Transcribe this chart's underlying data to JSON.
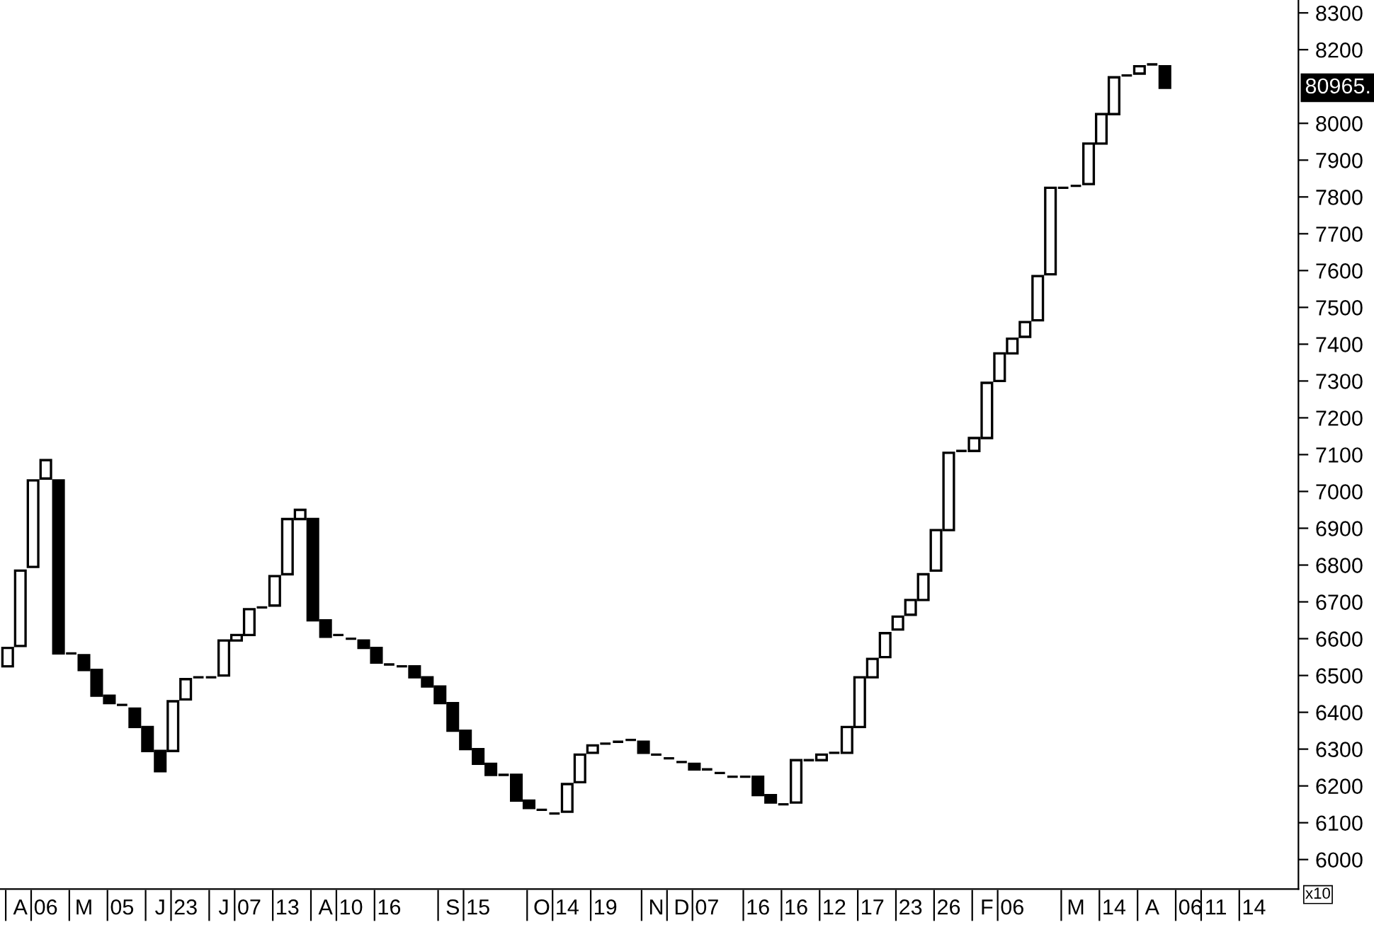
{
  "chart_data": {
    "type": "candlestick",
    "categories": [
      null,
      "A",
      null,
      "06",
      null,
      null,
      "M",
      null,
      null,
      "05",
      null,
      null,
      "J",
      null,
      "23",
      null,
      null,
      "J",
      null,
      "07",
      null,
      null,
      "13",
      null,
      null,
      "A",
      null,
      "10",
      null,
      null,
      "16",
      null,
      null,
      null,
      null,
      "S",
      null,
      "15",
      null,
      null,
      null,
      null,
      "O",
      null,
      "14",
      null,
      null,
      "19",
      null,
      null,
      null,
      "N",
      null,
      "D",
      null,
      "07",
      null,
      null,
      null,
      "16",
      null,
      null,
      "16",
      null,
      null,
      "12",
      null,
      null,
      "17",
      null,
      null,
      "23",
      null,
      null,
      "26",
      null,
      null,
      "F",
      null,
      "06",
      null,
      null,
      null,
      null,
      "M",
      null,
      null,
      "14",
      null,
      null,
      "A",
      null,
      null,
      "06",
      null,
      "11",
      null,
      null,
      "14"
    ],
    "ohlc": [
      [
        6525,
        6575,
        6525,
        6575
      ],
      [
        6580,
        6785,
        6580,
        6785
      ],
      [
        6795,
        7030,
        6795,
        7030
      ],
      [
        7035,
        7085,
        7035,
        7085
      ],
      [
        7030,
        7030,
        6560,
        6560
      ],
      [
        6560,
        6560,
        6560,
        6560
      ],
      [
        6555,
        6555,
        6515,
        6515
      ],
      [
        6515,
        6515,
        6445,
        6445
      ],
      [
        6445,
        6445,
        6425,
        6425
      ],
      [
        6420,
        6420,
        6420,
        6420
      ],
      [
        6410,
        6410,
        6360,
        6360
      ],
      [
        6360,
        6360,
        6295,
        6295
      ],
      [
        6295,
        6295,
        6240,
        6240
      ],
      [
        6295,
        6430,
        6295,
        6430
      ],
      [
        6435,
        6490,
        6435,
        6490
      ],
      [
        6495,
        6495,
        6495,
        6495
      ],
      [
        6495,
        6495,
        6495,
        6495
      ],
      [
        6500,
        6595,
        6500,
        6595
      ],
      [
        6595,
        6610,
        6595,
        6610
      ],
      [
        6610,
        6680,
        6610,
        6680
      ],
      [
        6685,
        6685,
        6685,
        6685
      ],
      [
        6690,
        6770,
        6690,
        6770
      ],
      [
        6775,
        6925,
        6775,
        6925
      ],
      [
        6925,
        6950,
        6925,
        6950
      ],
      [
        6925,
        6925,
        6650,
        6650
      ],
      [
        6650,
        6650,
        6605,
        6605
      ],
      [
        6610,
        6610,
        6610,
        6610
      ],
      [
        6600,
        6600,
        6600,
        6600
      ],
      [
        6595,
        6595,
        6575,
        6575
      ],
      [
        6575,
        6575,
        6535,
        6535
      ],
      [
        6530,
        6530,
        6530,
        6530
      ],
      [
        6525,
        6525,
        6525,
        6525
      ],
      [
        6525,
        6525,
        6495,
        6495
      ],
      [
        6495,
        6495,
        6470,
        6470
      ],
      [
        6470,
        6470,
        6425,
        6425
      ],
      [
        6425,
        6425,
        6350,
        6350
      ],
      [
        6350,
        6350,
        6300,
        6300
      ],
      [
        6300,
        6300,
        6260,
        6260
      ],
      [
        6260,
        6260,
        6230,
        6230
      ],
      [
        6230,
        6230,
        6230,
        6230
      ],
      [
        6230,
        6230,
        6160,
        6160
      ],
      [
        6160,
        6160,
        6140,
        6140
      ],
      [
        6135,
        6135,
        6135,
        6135
      ],
      [
        6125,
        6125,
        6125,
        6125
      ],
      [
        6130,
        6205,
        6130,
        6205
      ],
      [
        6210,
        6285,
        6210,
        6285
      ],
      [
        6290,
        6310,
        6290,
        6310
      ],
      [
        6315,
        6315,
        6315,
        6315
      ],
      [
        6320,
        6320,
        6320,
        6320
      ],
      [
        6325,
        6325,
        6325,
        6325
      ],
      [
        6320,
        6320,
        6290,
        6290
      ],
      [
        6285,
        6285,
        6285,
        6285
      ],
      [
        6275,
        6275,
        6275,
        6275
      ],
      [
        6265,
        6265,
        6265,
        6265
      ],
      [
        6260,
        6260,
        6245,
        6245
      ],
      [
        6245,
        6245,
        6245,
        6245
      ],
      [
        6235,
        6235,
        6235,
        6235
      ],
      [
        6225,
        6225,
        6225,
        6225
      ],
      [
        6225,
        6225,
        6225,
        6225
      ],
      [
        6225,
        6225,
        6175,
        6175
      ],
      [
        6175,
        6175,
        6155,
        6155
      ],
      [
        6150,
        6150,
        6150,
        6150
      ],
      [
        6155,
        6270,
        6155,
        6270
      ],
      [
        6270,
        6270,
        6270,
        6270
      ],
      [
        6270,
        6285,
        6270,
        6285
      ],
      [
        6290,
        6290,
        6290,
        6290
      ],
      [
        6290,
        6360,
        6290,
        6360
      ],
      [
        6360,
        6495,
        6360,
        6495
      ],
      [
        6495,
        6545,
        6495,
        6545
      ],
      [
        6550,
        6615,
        6550,
        6615
      ],
      [
        6625,
        6660,
        6625,
        6660
      ],
      [
        6665,
        6705,
        6665,
        6705
      ],
      [
        6705,
        6775,
        6705,
        6775
      ],
      [
        6785,
        6895,
        6785,
        6895
      ],
      [
        6895,
        7105,
        6895,
        7105
      ],
      [
        7110,
        7110,
        7110,
        7110
      ],
      [
        7110,
        7145,
        7110,
        7145
      ],
      [
        7145,
        7295,
        7145,
        7295
      ],
      [
        7300,
        7375,
        7300,
        7375
      ],
      [
        7375,
        7415,
        7375,
        7415
      ],
      [
        7420,
        7460,
        7420,
        7460
      ],
      [
        7465,
        7585,
        7465,
        7585
      ],
      [
        7590,
        7825,
        7590,
        7825
      ],
      [
        7825,
        7825,
        7825,
        7825
      ],
      [
        7830,
        7830,
        7830,
        7830
      ],
      [
        7835,
        7945,
        7835,
        7945
      ],
      [
        7945,
        8025,
        7945,
        8025
      ],
      [
        8025,
        8125,
        8025,
        8125
      ],
      [
        8130,
        8130,
        8130,
        8130
      ],
      [
        8135,
        8155,
        8135,
        8155
      ],
      [
        8160,
        8160,
        8160,
        8160
      ],
      [
        8155,
        8155,
        8096.5,
        8096.5
      ],
      null,
      null,
      null,
      null,
      null,
      null,
      null
    ],
    "ylim": [
      5920,
      8335
    ],
    "yticks": [
      6000,
      6100,
      6200,
      6300,
      6400,
      6500,
      6600,
      6700,
      6800,
      6900,
      7000,
      7100,
      7200,
      7300,
      7400,
      7500,
      7600,
      7700,
      7800,
      7900,
      8000,
      8200,
      8300
    ],
    "annotations": [
      "80965.",
      "x10"
    ]
  }
}
